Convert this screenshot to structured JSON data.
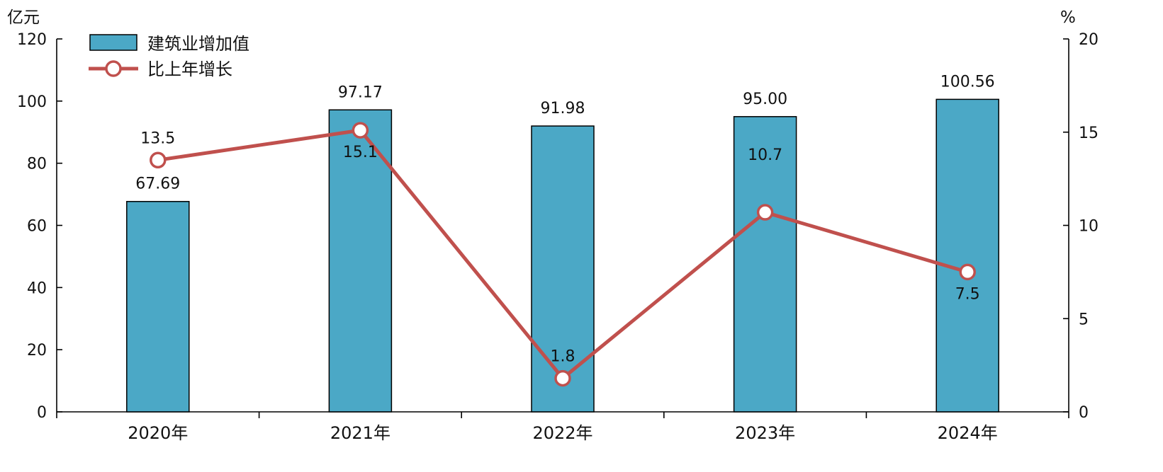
{
  "chart_data": {
    "type": "bar+line",
    "categories": [
      "2020年",
      "2021年",
      "2022年",
      "2023年",
      "2024年"
    ],
    "series": [
      {
        "name": "建筑业增加值",
        "kind": "bar",
        "axis": "left",
        "values": [
          67.69,
          97.17,
          91.98,
          95.0,
          100.56
        ],
        "labels": [
          "67.69",
          "97.17",
          "91.98",
          "95.00",
          "100.56"
        ],
        "color": "#4BA8C6"
      },
      {
        "name": "比上年增长",
        "kind": "line",
        "axis": "right",
        "values": [
          13.5,
          15.1,
          1.8,
          10.7,
          7.5
        ],
        "labels": [
          "13.5",
          "15.1",
          "1.8",
          "10.7",
          "7.5"
        ],
        "color": "#C0504D"
      }
    ],
    "y_left": {
      "unit": "亿元",
      "ylim": [
        0,
        120
      ],
      "ticks": [
        "0",
        "20",
        "40",
        "60",
        "80",
        "100",
        "120"
      ]
    },
    "y_right": {
      "unit": "%",
      "ylim": [
        0,
        20
      ],
      "ticks": [
        "0",
        "5",
        "10",
        "15",
        "20"
      ]
    },
    "legend": {
      "placement": "top-left"
    },
    "grid": false
  }
}
